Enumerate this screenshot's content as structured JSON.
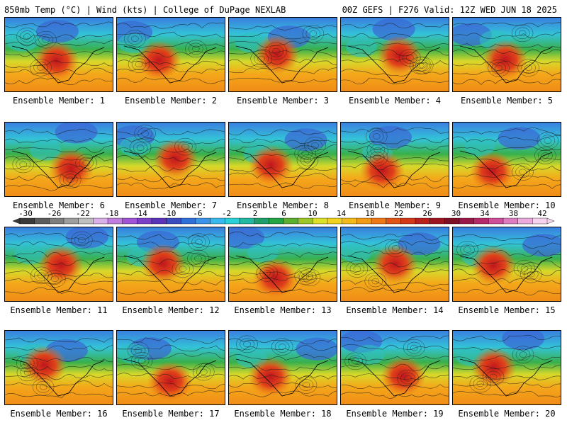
{
  "header": {
    "left": "850mb Temp (°C) | Wind (kts) | College of DuPage NEXLAB",
    "right": "00Z GEFS | F276 Valid: 12Z WED JUN 18 2025"
  },
  "members": [
    "Ensemble Member: 1",
    "Ensemble Member: 2",
    "Ensemble Member: 3",
    "Ensemble Member: 4",
    "Ensemble Member: 5",
    "Ensemble Member: 6",
    "Ensemble Member: 7",
    "Ensemble Member: 8",
    "Ensemble Member: 9",
    "Ensemble Member: 10",
    "Ensemble Member: 11",
    "Ensemble Member: 12",
    "Ensemble Member: 13",
    "Ensemble Member: 14",
    "Ensemble Member: 15",
    "Ensemble Member: 16",
    "Ensemble Member: 17",
    "Ensemble Member: 18",
    "Ensemble Member: 19",
    "Ensemble Member: 20"
  ],
  "colorbar": {
    "ticks": [
      "-30",
      "-26",
      "-22",
      "-18",
      "-14",
      "-10",
      "-6",
      "-2",
      "2",
      "6",
      "10",
      "14",
      "18",
      "22",
      "26",
      "30",
      "34",
      "38",
      "42"
    ],
    "colors": [
      "#3a3a3a",
      "#5c5c5c",
      "#7d7d7d",
      "#9e9e9e",
      "#bfbfbf",
      "#d9b0e8",
      "#c27be0",
      "#a152d6",
      "#7d3fc7",
      "#5a33b8",
      "#3b4cc0",
      "#2f6fd6",
      "#3c93e8",
      "#39b8ee",
      "#2ad1d8",
      "#23b8a2",
      "#1f9e6a",
      "#25a444",
      "#5cb030",
      "#9fc629",
      "#dfe02b",
      "#f4d31f",
      "#f6b91a",
      "#f39a17",
      "#ee7716",
      "#e25416",
      "#d23718",
      "#bb1f1c",
      "#9d1520",
      "#7e1025",
      "#9c1849",
      "#b8296c",
      "#cf4f9a",
      "#e07bc2",
      "#eea9de",
      "#f6d2ef"
    ]
  }
}
